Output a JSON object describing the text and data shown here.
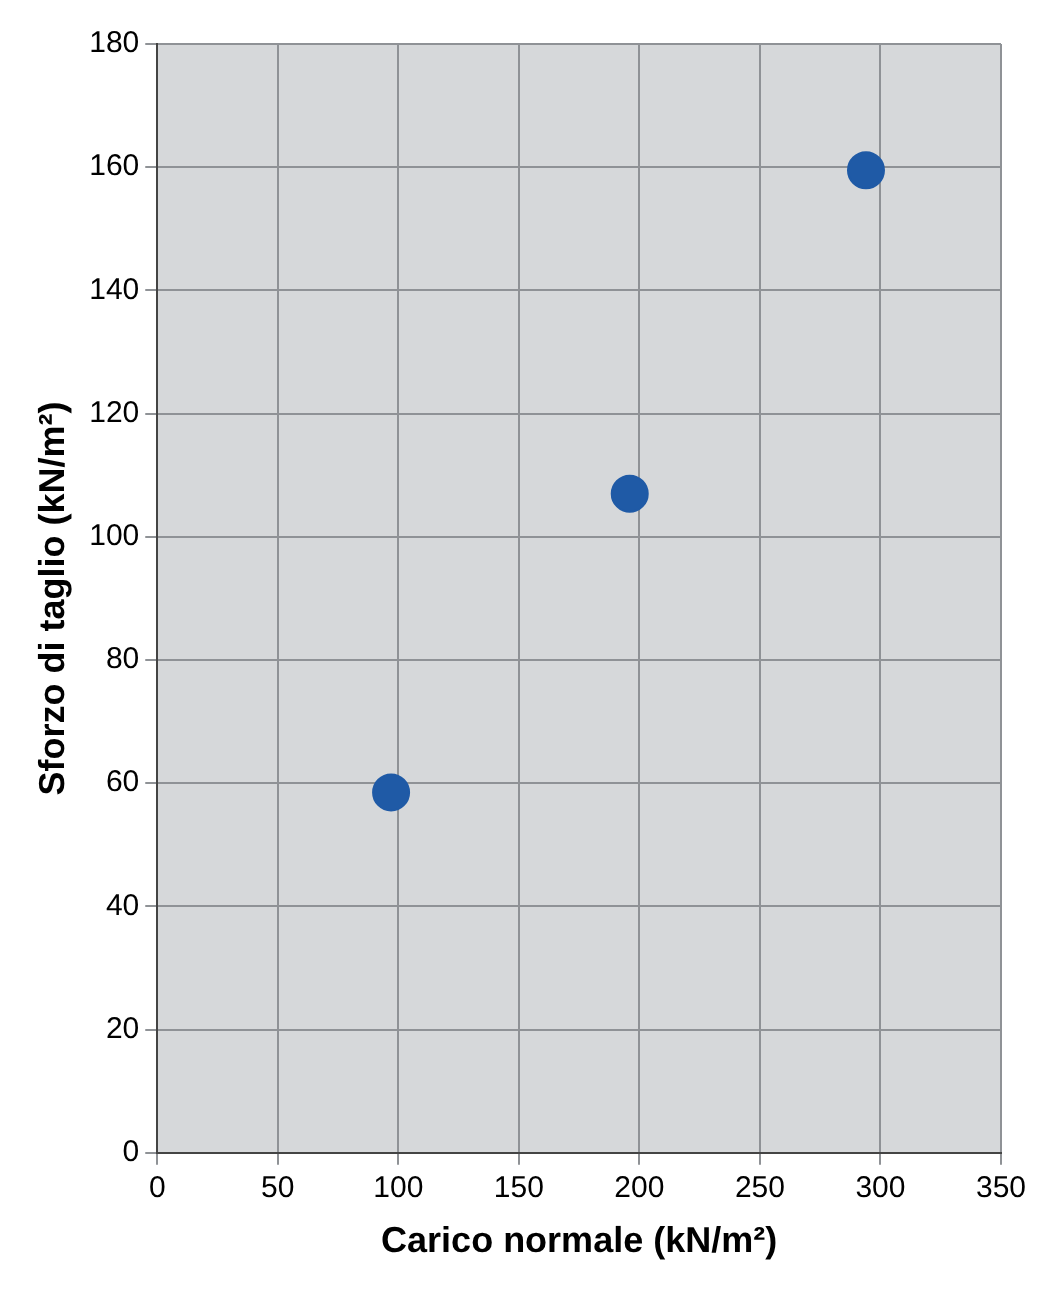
{
  "chart_data": {
    "type": "scatter",
    "xlabel": "Carico normale (kN/m²)",
    "ylabel": "Sforzo di taglio (kN/m²)",
    "x": [
      97,
      196,
      294
    ],
    "series": [
      {
        "color": "#1f5aa6",
        "values": [
          58.5,
          107,
          159.5
        ]
      }
    ],
    "xlim": [
      0,
      350
    ],
    "xticks": [
      0,
      50,
      100,
      150,
      200,
      250,
      300,
      350
    ],
    "ylim": [
      0,
      180
    ],
    "yticks": [
      0,
      20,
      40,
      60,
      80,
      100,
      120,
      140,
      160,
      180
    ],
    "grid": true,
    "legend": false,
    "marker": "circle"
  }
}
